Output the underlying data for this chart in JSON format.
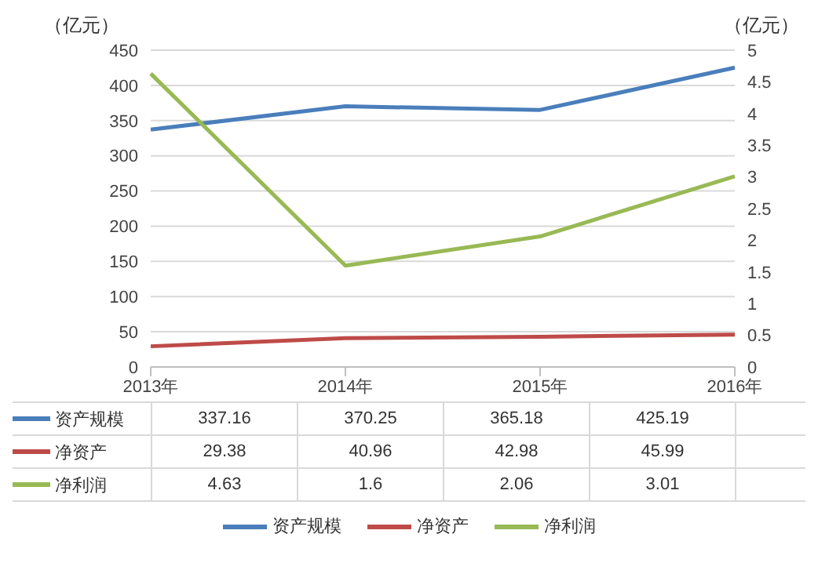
{
  "chart_data": {
    "type": "line",
    "ylabel": "（亿元）",
    "y2label": "（亿元）",
    "categories": [
      "2013年",
      "2014年",
      "2015年",
      "2016年"
    ],
    "series": [
      {
        "name": "资产规模",
        "color": "#4a7ebb",
        "values": [
          337.16,
          370.25,
          365.18,
          425.19
        ]
      },
      {
        "name": "净资产",
        "color": "#be4b48",
        "values": [
          29.38,
          40.96,
          42.98,
          45.99
        ]
      },
      {
        "name": "净利润",
        "color": "#98b954",
        "values": [
          4.63,
          1.6,
          2.06,
          3.01
        ],
        "axis": "y2"
      }
    ],
    "ylim": [
      0,
      450
    ],
    "yticks": [
      0,
      50,
      100,
      150,
      200,
      250,
      300,
      350,
      400,
      450
    ],
    "y2lim": [
      0,
      5
    ],
    "y2ticks": [
      0,
      0.5,
      1,
      1.5,
      2,
      2.5,
      3,
      3.5,
      4,
      4.5,
      5
    ],
    "grid": "y",
    "legend": "bottom",
    "data_labels": true
  }
}
